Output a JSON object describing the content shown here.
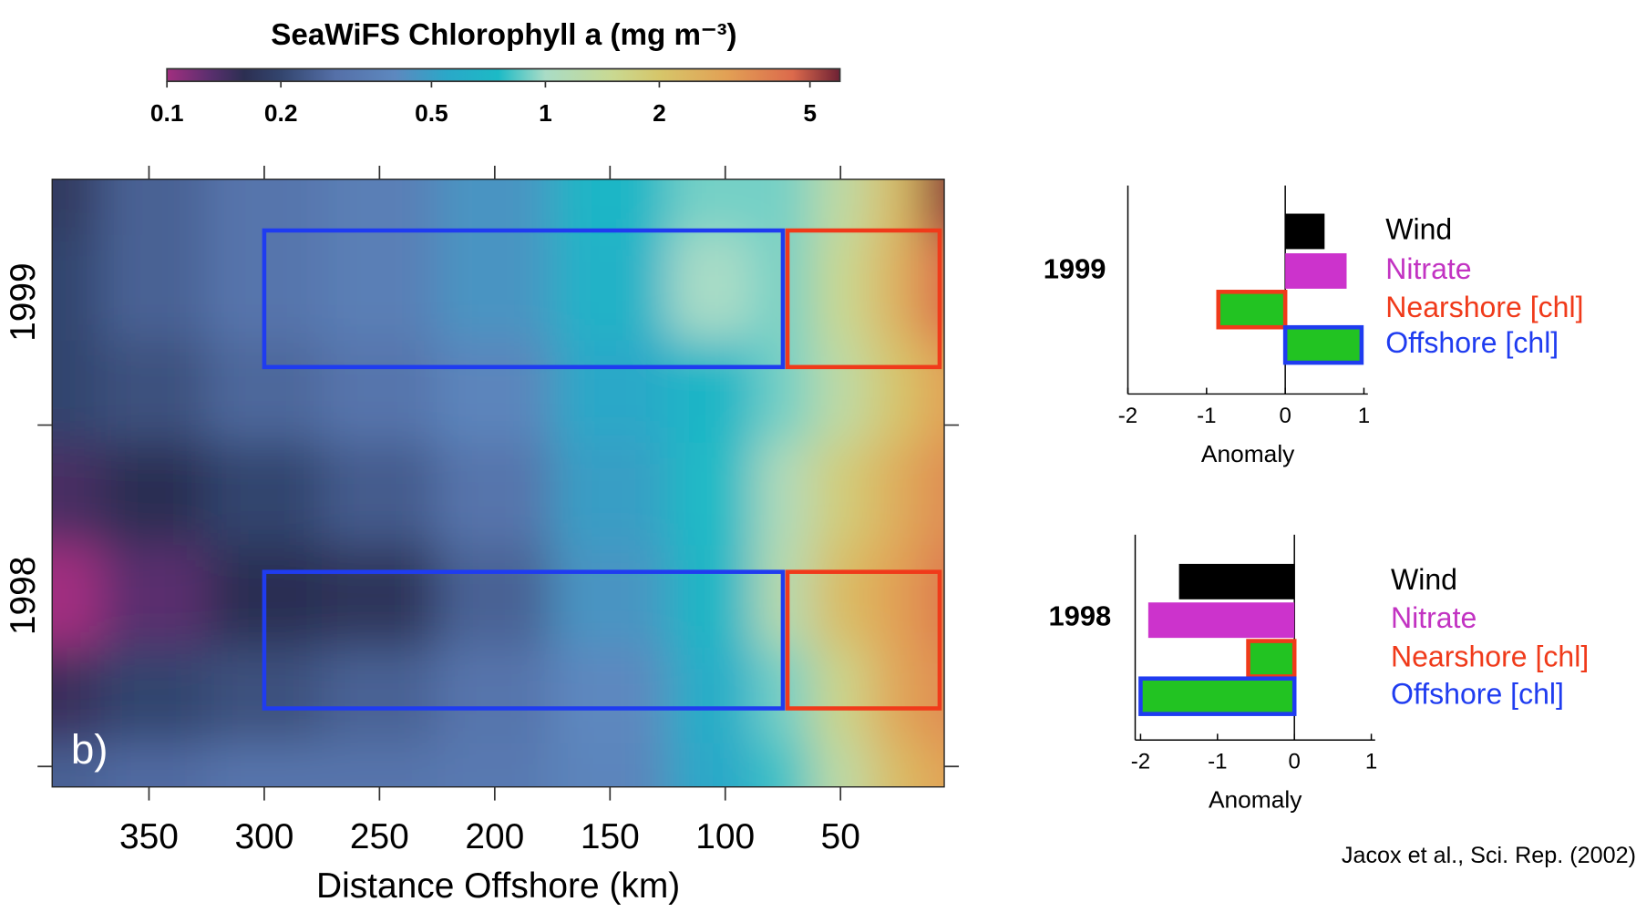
{
  "chart_data": [
    {
      "type": "heatmap",
      "title": "SeaWiFS Chlorophyll a (mg m⁻³)",
      "colorbar": {
        "ticks": [
          0.1,
          0.2,
          0.5,
          1,
          2,
          5
        ],
        "lim": [
          0.1,
          6
        ],
        "log": true
      },
      "colormap": [
        [
          0.1,
          "#a22f80"
        ],
        [
          0.13,
          "#5a2f6e"
        ],
        [
          0.16,
          "#2c2f52"
        ],
        [
          0.2,
          "#33456e"
        ],
        [
          0.28,
          "#5570a8"
        ],
        [
          0.4,
          "#5d88bf"
        ],
        [
          0.55,
          "#2aa8c8"
        ],
        [
          0.75,
          "#1cbac6"
        ],
        [
          1,
          "#a9dcc6"
        ],
        [
          1.5,
          "#c9d992"
        ],
        [
          2,
          "#d6c66a"
        ],
        [
          3,
          "#e2a155"
        ],
        [
          4.5,
          "#dc6a4c"
        ],
        [
          6,
          "#6e2134"
        ]
      ],
      "xlabel": "Distance Offshore (km)",
      "xlim": [
        392,
        5
      ],
      "xticks": [
        350,
        300,
        250,
        200,
        150,
        100,
        50
      ],
      "ylim": [
        1997.94,
        1999.72
      ],
      "yticks": [
        1998,
        1999
      ],
      "ylabels": [
        {
          "value": 1998.5,
          "label": "1998"
        },
        {
          "value": 1999.36,
          "label": "1999"
        }
      ],
      "x": [
        392,
        350,
        300,
        250,
        200,
        150,
        100,
        75,
        50,
        25,
        5
      ],
      "y": [
        1997.94,
        1998.2,
        1998.5,
        1998.8,
        1999.1,
        1999.4,
        1999.72
      ],
      "z": [
        [
          0.25,
          0.27,
          0.3,
          0.3,
          0.32,
          0.38,
          0.55,
          0.8,
          1.3,
          2.2,
          3
        ],
        [
          0.15,
          0.2,
          0.22,
          0.25,
          0.3,
          0.4,
          0.6,
          0.9,
          1.6,
          2.8,
          3.5
        ],
        [
          0.1,
          0.13,
          0.16,
          0.17,
          0.25,
          0.45,
          0.7,
          1.2,
          2.2,
          3,
          4
        ],
        [
          0.14,
          0.16,
          0.2,
          0.24,
          0.3,
          0.5,
          0.75,
          1.1,
          1.8,
          2.6,
          3.5
        ],
        [
          0.2,
          0.22,
          0.26,
          0.3,
          0.38,
          0.55,
          0.7,
          0.9,
          1.3,
          2,
          3
        ],
        [
          0.2,
          0.25,
          0.3,
          0.35,
          0.45,
          0.65,
          1,
          0.9,
          1.5,
          2.5,
          4.5
        ],
        [
          0.18,
          0.25,
          0.3,
          0.35,
          0.45,
          0.7,
          0.9,
          0.9,
          1.3,
          2.2,
          5.5
        ]
      ],
      "boxes": [
        {
          "x": [
            300,
            75
          ],
          "y": [
            1999.17,
            1999.57
          ],
          "color": "#1f3cf0"
        },
        {
          "x": [
            73,
            7
          ],
          "y": [
            1999.17,
            1999.57
          ],
          "color": "#f03a1a"
        },
        {
          "x": [
            300,
            75
          ],
          "y": [
            1998.17,
            1998.57
          ],
          "color": "#1f3cf0"
        },
        {
          "x": [
            73,
            7
          ],
          "y": [
            1998.17,
            1998.57
          ],
          "color": "#f03a1a"
        }
      ],
      "annotation": "b)"
    },
    {
      "type": "hbar",
      "label": "1999",
      "categories": [
        "Wind",
        "Nitrate",
        "Nearshore [chl]",
        "Offshore [chl]"
      ],
      "values": [
        0.5,
        0.78,
        -0.85,
        0.97
      ],
      "colors": [
        "#000000",
        "#cc33cc",
        "#22c322",
        "#22c322"
      ],
      "edgecolors": [
        null,
        null,
        "#f03a1a",
        "#1f3cf0"
      ],
      "label_colors": [
        "#000000",
        "#c233c2",
        "#f03a1a",
        "#1f3cf0"
      ],
      "xlabel": "Anomaly",
      "xlim": [
        -2,
        1.05
      ],
      "xticks": [
        -2,
        -1,
        0,
        1
      ]
    },
    {
      "type": "hbar",
      "label": "1998",
      "categories": [
        "Wind",
        "Nitrate",
        "Nearshore [chl]",
        "Offshore [chl]"
      ],
      "values": [
        -1.5,
        -1.9,
        -0.6,
        -2.0
      ],
      "colors": [
        "#000000",
        "#cc33cc",
        "#22c322",
        "#22c322"
      ],
      "edgecolors": [
        null,
        null,
        "#f03a1a",
        "#1f3cf0"
      ],
      "label_colors": [
        "#000000",
        "#c233c2",
        "#f03a1a",
        "#1f3cf0"
      ],
      "xlabel": "Anomaly",
      "xlim": [
        -2.07,
        1.05
      ],
      "xticks": [
        -2,
        -1,
        0,
        1
      ]
    }
  ],
  "source": "Jacox et al., Sci. Rep. (2002)"
}
